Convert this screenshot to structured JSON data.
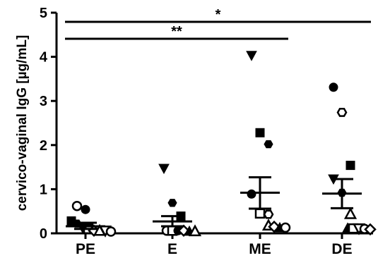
{
  "chart_data": {
    "type": "scatter",
    "ylabel": "cervico-vaginal IgG [µg/mL]",
    "ylim": [
      0,
      5
    ],
    "yticks": [
      0,
      1,
      2,
      3,
      4,
      5
    ],
    "categories": [
      "PE",
      "E",
      "ME",
      "DE"
    ],
    "series": [
      {
        "category": "PE",
        "mean": 0.16,
        "sem_low": 0.1,
        "sem_high": 0.24,
        "points": [
          {
            "y": 0.62,
            "marker": "circle-open"
          },
          {
            "y": 0.54,
            "marker": "circle-filled"
          },
          {
            "y": 0.28,
            "marker": "square-filled"
          },
          {
            "y": 0.22,
            "marker": "hexagon-filled"
          },
          {
            "y": 0.12,
            "marker": "triangle-down-filled"
          },
          {
            "y": 0.1,
            "marker": "square-open"
          },
          {
            "y": 0.06,
            "marker": "diamond-open"
          },
          {
            "y": 0.06,
            "marker": "triangle-open"
          },
          {
            "y": 0.06,
            "marker": "triangle-down-open"
          },
          {
            "y": 0.04,
            "marker": "circle-open"
          }
        ]
      },
      {
        "category": "E",
        "mean": 0.27,
        "sem_low": 0.16,
        "sem_high": 0.39,
        "points": [
          {
            "y": 1.47,
            "marker": "triangle-down-filled"
          },
          {
            "y": 0.69,
            "marker": "hexagon-filled"
          },
          {
            "y": 0.39,
            "marker": "square-filled"
          },
          {
            "y": 0.06,
            "marker": "circle-open"
          },
          {
            "y": 0.06,
            "marker": "square-open"
          },
          {
            "y": 0.06,
            "marker": "circle-filled"
          },
          {
            "y": 0.06,
            "marker": "diamond-open"
          },
          {
            "y": 0.05,
            "marker": "triangle-filled"
          },
          {
            "y": 0.05,
            "marker": "triangle-open"
          }
        ]
      },
      {
        "category": "ME",
        "mean": 0.92,
        "sem_low": 0.56,
        "sem_high": 1.27,
        "points": [
          {
            "y": 4.03,
            "marker": "triangle-down-filled"
          },
          {
            "y": 2.28,
            "marker": "square-filled"
          },
          {
            "y": 2.02,
            "marker": "hexagon-filled"
          },
          {
            "y": 0.89,
            "marker": "circle-filled"
          },
          {
            "y": 0.45,
            "marker": "square-open"
          },
          {
            "y": 0.43,
            "marker": "hexagon-open"
          },
          {
            "y": 0.18,
            "marker": "triangle-open"
          },
          {
            "y": 0.15,
            "marker": "diamond-open"
          },
          {
            "y": 0.13,
            "marker": "triangle-filled"
          },
          {
            "y": 0.13,
            "marker": "circle-open"
          }
        ]
      },
      {
        "category": "DE",
        "mean": 0.9,
        "sem_low": 0.57,
        "sem_high": 1.23,
        "points": [
          {
            "y": 3.31,
            "marker": "circle-filled"
          },
          {
            "y": 2.74,
            "marker": "hexagon-open"
          },
          {
            "y": 1.54,
            "marker": "square-filled"
          },
          {
            "y": 1.23,
            "marker": "triangle-down-filled"
          },
          {
            "y": 0.92,
            "marker": "hexagon-filled"
          },
          {
            "y": 0.44,
            "marker": "triangle-open"
          },
          {
            "y": 0.12,
            "marker": "triangle-filled"
          },
          {
            "y": 0.11,
            "marker": "square-open"
          },
          {
            "y": 0.11,
            "marker": "triangle-down-open"
          },
          {
            "y": 0.1,
            "marker": "circle-open"
          },
          {
            "y": 0.09,
            "marker": "diamond-open"
          }
        ]
      }
    ],
    "significance": [
      {
        "label": "*",
        "from": "PE",
        "to": "DE"
      },
      {
        "label": "**",
        "from": "PE",
        "to": "ME"
      }
    ],
    "grid": false
  }
}
